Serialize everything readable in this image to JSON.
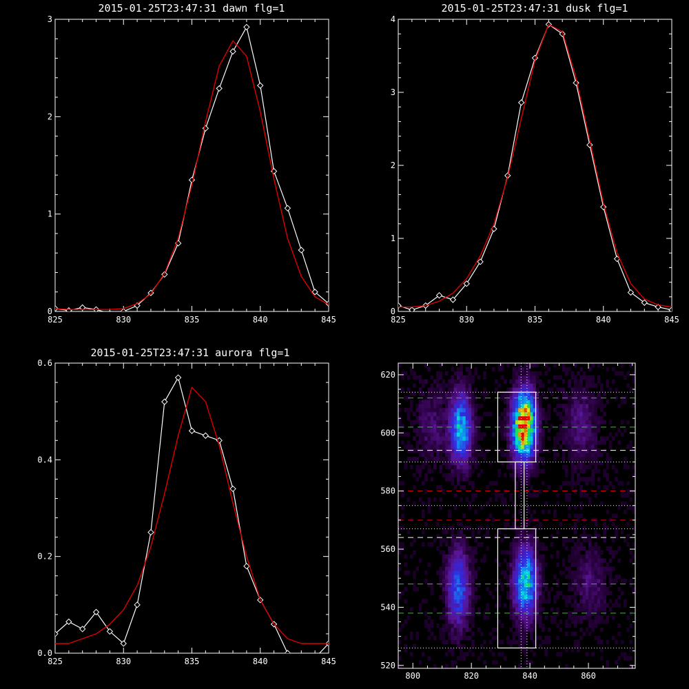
{
  "colors": {
    "background": "#000000",
    "axis": "#ffffff",
    "data_line": "#ffffff",
    "fit_line": "#dd0000",
    "green_dash": "#22cc22",
    "red_dash": "#dd0000",
    "white_dash": "#ffffff"
  },
  "chart_data": [
    {
      "type": "line",
      "title": "2015-01-25T23:47:31 dawn flg=1",
      "xlim": [
        825,
        845
      ],
      "ylim": [
        0,
        3
      ],
      "xticks": [
        "825",
        "830",
        "835",
        "840",
        "845"
      ],
      "yticks": [
        "0",
        "1",
        "2",
        "3"
      ],
      "series": [
        {
          "role": "data",
          "marker": "diamond",
          "x": [
            825,
            826,
            827,
            828,
            829,
            830,
            831,
            832,
            833,
            834,
            835,
            836,
            837,
            838,
            839,
            840,
            841,
            842,
            843,
            844,
            845
          ],
          "y": [
            0.03,
            0.01,
            0.04,
            0.02,
            -0.02,
            0.0,
            0.06,
            0.19,
            0.38,
            0.7,
            1.35,
            1.88,
            2.29,
            2.67,
            2.92,
            2.32,
            1.44,
            1.06,
            0.63,
            0.2,
            0.08
          ]
        },
        {
          "role": "fit",
          "x": [
            825,
            826,
            827,
            828,
            829,
            830,
            831,
            832,
            833,
            834,
            835,
            836,
            837,
            838,
            839,
            840,
            841,
            842,
            843,
            844,
            845
          ],
          "y": [
            0.03,
            0.02,
            0.02,
            0.02,
            0.02,
            0.03,
            0.08,
            0.18,
            0.39,
            0.75,
            1.3,
            1.95,
            2.52,
            2.78,
            2.62,
            2.05,
            1.36,
            0.75,
            0.36,
            0.15,
            0.07
          ]
        }
      ]
    },
    {
      "type": "line",
      "title": "2015-01-25T23:47:31 dusk flg=1",
      "xlim": [
        825,
        845
      ],
      "ylim": [
        0,
        4
      ],
      "xticks": [
        "825",
        "830",
        "835",
        "840",
        "845"
      ],
      "yticks": [
        "0",
        "1",
        "2",
        "3",
        "4"
      ],
      "series": [
        {
          "role": "data",
          "marker": "diamond",
          "x": [
            825,
            826,
            827,
            828,
            829,
            830,
            831,
            832,
            833,
            834,
            835,
            836,
            837,
            838,
            839,
            840,
            841,
            842,
            843,
            844,
            845
          ],
          "y": [
            0.08,
            0.02,
            0.08,
            0.22,
            0.16,
            0.38,
            0.68,
            1.13,
            1.86,
            2.86,
            3.47,
            3.93,
            3.8,
            3.13,
            2.28,
            1.43,
            0.72,
            0.26,
            0.12,
            0.06,
            0.02
          ]
        },
        {
          "role": "fit",
          "x": [
            825,
            826,
            827,
            828,
            829,
            830,
            831,
            832,
            833,
            834,
            835,
            836,
            837,
            838,
            839,
            840,
            841,
            842,
            843,
            844,
            845
          ],
          "y": [
            0.06,
            0.06,
            0.08,
            0.14,
            0.25,
            0.45,
            0.76,
            1.2,
            1.84,
            2.64,
            3.44,
            3.93,
            3.83,
            3.2,
            2.34,
            1.48,
            0.8,
            0.38,
            0.17,
            0.09,
            0.06
          ]
        }
      ]
    },
    {
      "type": "line",
      "title": "2015-01-25T23:47:31 aurora flg=1",
      "xlim": [
        825,
        845
      ],
      "ylim": [
        0,
        0.6
      ],
      "xticks": [
        "825",
        "830",
        "835",
        "840",
        "845"
      ],
      "yticks": [
        "0.0",
        "0.2",
        "0.4",
        "0.6"
      ],
      "series": [
        {
          "role": "data",
          "marker": "diamond",
          "x": [
            825,
            826,
            827,
            828,
            829,
            830,
            831,
            832,
            833,
            834,
            835,
            836,
            837,
            838,
            839,
            840,
            841,
            842,
            843,
            844,
            845
          ],
          "y": [
            0.04,
            0.065,
            0.05,
            0.085,
            0.045,
            0.02,
            0.1,
            0.25,
            0.52,
            0.57,
            0.46,
            0.45,
            0.44,
            0.34,
            0.18,
            0.11,
            0.06,
            0.0,
            -0.01,
            -0.01,
            0.02
          ]
        },
        {
          "role": "fit",
          "x": [
            825,
            826,
            827,
            828,
            829,
            830,
            831,
            832,
            833,
            834,
            835,
            836,
            837,
            838,
            839,
            840,
            841,
            842,
            843,
            844,
            845
          ],
          "y": [
            0.02,
            0.02,
            0.03,
            0.04,
            0.06,
            0.09,
            0.14,
            0.22,
            0.33,
            0.45,
            0.55,
            0.52,
            0.43,
            0.31,
            0.2,
            0.11,
            0.06,
            0.03,
            0.02,
            0.02,
            0.02
          ]
        }
      ]
    },
    {
      "type": "heatmap",
      "title": "",
      "xlim": [
        795,
        876
      ],
      "ylim": [
        519,
        624
      ],
      "xticks": [
        "800",
        "820",
        "840",
        "860"
      ],
      "yticks": [
        "520",
        "540",
        "560",
        "580",
        "600",
        "620"
      ],
      "boxes": [
        {
          "x": [
            829,
            842
          ],
          "y": [
            590,
            614
          ]
        },
        {
          "x": [
            829,
            842
          ],
          "y": [
            526,
            567
          ]
        }
      ],
      "connector_x": [
        835,
        838
      ],
      "vertical_dotted_x": [
        837,
        839
      ],
      "horizontal_lines": [
        {
          "y": 614,
          "style": "dotted",
          "color": "white"
        },
        {
          "y": 612,
          "style": "dashed",
          "color": "green"
        },
        {
          "y": 602,
          "style": "dashed",
          "color": "green"
        },
        {
          "y": 594,
          "style": "dashed",
          "color": "white"
        },
        {
          "y": 590,
          "style": "dotted",
          "color": "white"
        },
        {
          "y": 580,
          "style": "dashed",
          "color": "red"
        },
        {
          "y": 575,
          "style": "dotted",
          "color": "white"
        },
        {
          "y": 570,
          "style": "dashed",
          "color": "red"
        },
        {
          "y": 567,
          "style": "dotted",
          "color": "white"
        },
        {
          "y": 564,
          "style": "dashed",
          "color": "white"
        },
        {
          "y": 548,
          "style": "dashed",
          "color": "green"
        },
        {
          "y": 538,
          "style": "dashed",
          "color": "green"
        },
        {
          "y": 526,
          "style": "dotted",
          "color": "white"
        }
      ],
      "emission_bands": [
        {
          "x_center": 837.5,
          "x_sigma": 2.6,
          "y_center": 602,
          "y_sigma": 7.5,
          "peak": 1.0
        },
        {
          "x_center": 816,
          "x_sigma": 2.4,
          "y_center": 601,
          "y_sigma": 8,
          "peak": 0.5
        },
        {
          "x_center": 838,
          "x_sigma": 2.6,
          "y_center": 548,
          "y_sigma": 8,
          "peak": 0.55
        },
        {
          "x_center": 815,
          "x_sigma": 2.6,
          "y_center": 546,
          "y_sigma": 9,
          "peak": 0.35
        },
        {
          "x_center": 857,
          "x_sigma": 4,
          "y_center": 602,
          "y_sigma": 9,
          "peak": 0.12
        },
        {
          "x_center": 806,
          "x_sigma": 4,
          "y_center": 602,
          "y_sigma": 9,
          "peak": 0.1
        },
        {
          "x_center": 860,
          "x_sigma": 4,
          "y_center": 548,
          "y_sigma": 9,
          "peak": 0.1
        }
      ]
    }
  ]
}
